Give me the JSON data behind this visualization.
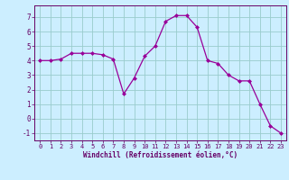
{
  "x": [
    0,
    1,
    2,
    3,
    4,
    5,
    6,
    7,
    8,
    9,
    10,
    11,
    12,
    13,
    14,
    15,
    16,
    17,
    18,
    19,
    20,
    21,
    22,
    23
  ],
  "y": [
    4.0,
    4.0,
    4.1,
    4.5,
    4.5,
    4.5,
    4.4,
    4.1,
    1.7,
    2.8,
    4.3,
    5.0,
    6.7,
    7.1,
    7.1,
    6.3,
    4.0,
    3.8,
    3.0,
    2.6,
    2.6,
    1.0,
    -0.5,
    -1.0
  ],
  "line_color": "#990099",
  "marker": "D",
  "marker_size": 2,
  "bg_color": "#cceeff",
  "grid_color": "#99cccc",
  "xlabel": "Windchill (Refroidissement éolien,°C)",
  "xlabel_color": "#660066",
  "tick_color": "#660066",
  "spine_color": "#660066",
  "xlim": [
    -0.5,
    23.5
  ],
  "ylim": [
    -1.5,
    7.8
  ],
  "yticks": [
    -1,
    0,
    1,
    2,
    3,
    4,
    5,
    6,
    7
  ],
  "xticks": [
    0,
    1,
    2,
    3,
    4,
    5,
    6,
    7,
    8,
    9,
    10,
    11,
    12,
    13,
    14,
    15,
    16,
    17,
    18,
    19,
    20,
    21,
    22,
    23
  ],
  "xtick_labels": [
    "0",
    "1",
    "2",
    "3",
    "4",
    "5",
    "6",
    "7",
    "8",
    "9",
    "10",
    "11",
    "12",
    "13",
    "14",
    "15",
    "16",
    "17",
    "18",
    "19",
    "20",
    "21",
    "22",
    "23"
  ]
}
